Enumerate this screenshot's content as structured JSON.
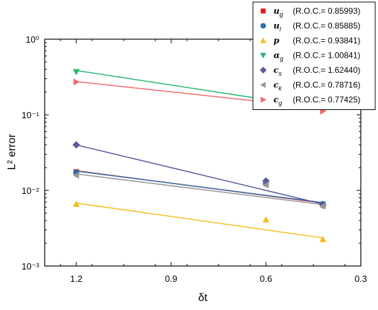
{
  "chart_data": {
    "type": "scatter",
    "xlabel": "δt",
    "ylabel": "L² error",
    "xscale": "linear",
    "xlim": [
      1.3,
      0.3
    ],
    "xticks": [
      "1.2",
      "0.9",
      "0.6",
      "0.3"
    ],
    "xtick_values": [
      1.2,
      0.9,
      0.6,
      0.3
    ],
    "yscale": "log",
    "ylim": [
      0.001,
      1
    ],
    "yticks": [
      "10⁰",
      "10⁻¹",
      "10⁻²",
      "10⁻³"
    ],
    "ytick_values": [
      1,
      0.1,
      0.01,
      0.001
    ],
    "grid": false,
    "legend_position": "top-right",
    "x": [
      1.2,
      0.6,
      0.42
    ],
    "series": [
      {
        "name": "u",
        "sub": "g",
        "roc": "(R.O.C.= 0.85993)",
        "color": "#e41a1c",
        "marker": "square",
        "values": [
          0.0175,
          0.0125,
          0.0065
        ],
        "fit": [
          0.0182,
          0.0068
        ]
      },
      {
        "name": "u",
        "sub": "l",
        "roc": "(R.O.C.= 0.85885)",
        "color": "#2f6fb0",
        "marker": "circle",
        "values": [
          0.0172,
          0.0122,
          0.0066
        ],
        "fit": [
          0.018,
          0.0069
        ]
      },
      {
        "name": "p",
        "sub": "",
        "roc": "(R.O.C.= 0.93841)",
        "color": "#f5be1e",
        "marker": "triangle-up",
        "values": [
          0.0066,
          0.0041,
          0.00225
        ],
        "fit": [
          0.0068,
          0.00235
        ]
      },
      {
        "name": "α",
        "sub": "g",
        "roc": "(R.O.C.= 1.00841)",
        "color": "#2ab672",
        "marker": "triangle-down",
        "values": [
          0.37,
          0.215,
          0.118
        ],
        "fit": [
          0.385,
          0.122
        ]
      },
      {
        "name": "c",
        "sub": "s",
        "roc": "(R.O.C.= 1.62440)",
        "color": "#5a5aa0",
        "marker": "diamond",
        "values": [
          0.04,
          0.0133,
          0.0064
        ],
        "fit": [
          0.04,
          0.0066
        ]
      },
      {
        "name": "c",
        "sub": "k",
        "roc": "(R.O.C.= 0.78716)",
        "color": "#999999",
        "marker": "triangle-left",
        "values": [
          0.0158,
          0.0118,
          0.0062
        ],
        "fit": [
          0.0165,
          0.0065
        ]
      },
      {
        "name": "c",
        "sub": "g",
        "roc": "(R.O.C.= 0.77425)",
        "color": "#f26a6a",
        "marker": "triangle-right",
        "values": [
          0.272,
          0.21,
          0.112
        ],
        "fit": [
          0.275,
          0.122
        ]
      }
    ]
  }
}
